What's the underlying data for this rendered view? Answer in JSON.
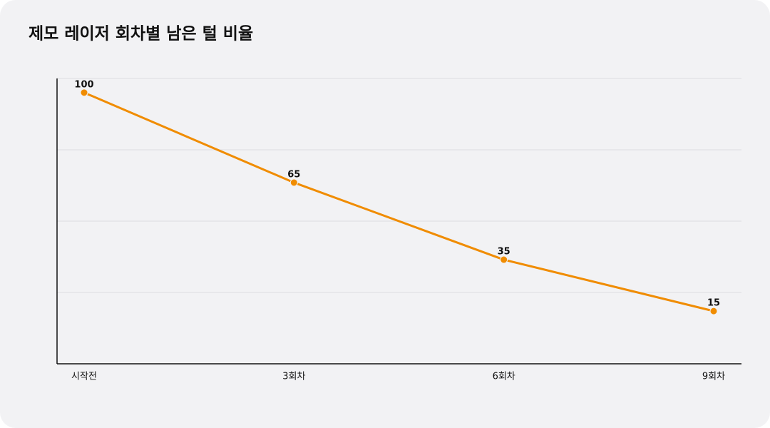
{
  "chart_data": {
    "type": "line",
    "title": "제모 레이저 회차별 남은 털 비율",
    "categories": [
      "시작전",
      "3회차",
      "6회차",
      "9회차"
    ],
    "series": [
      {
        "values": [
          100,
          65,
          35,
          15
        ],
        "color": "#f08c00"
      }
    ],
    "ylim": [
      -5.5,
      105.5
    ],
    "yticks": [
      -5.5,
      22.25,
      50,
      77.75,
      105.5
    ],
    "grid": true
  }
}
